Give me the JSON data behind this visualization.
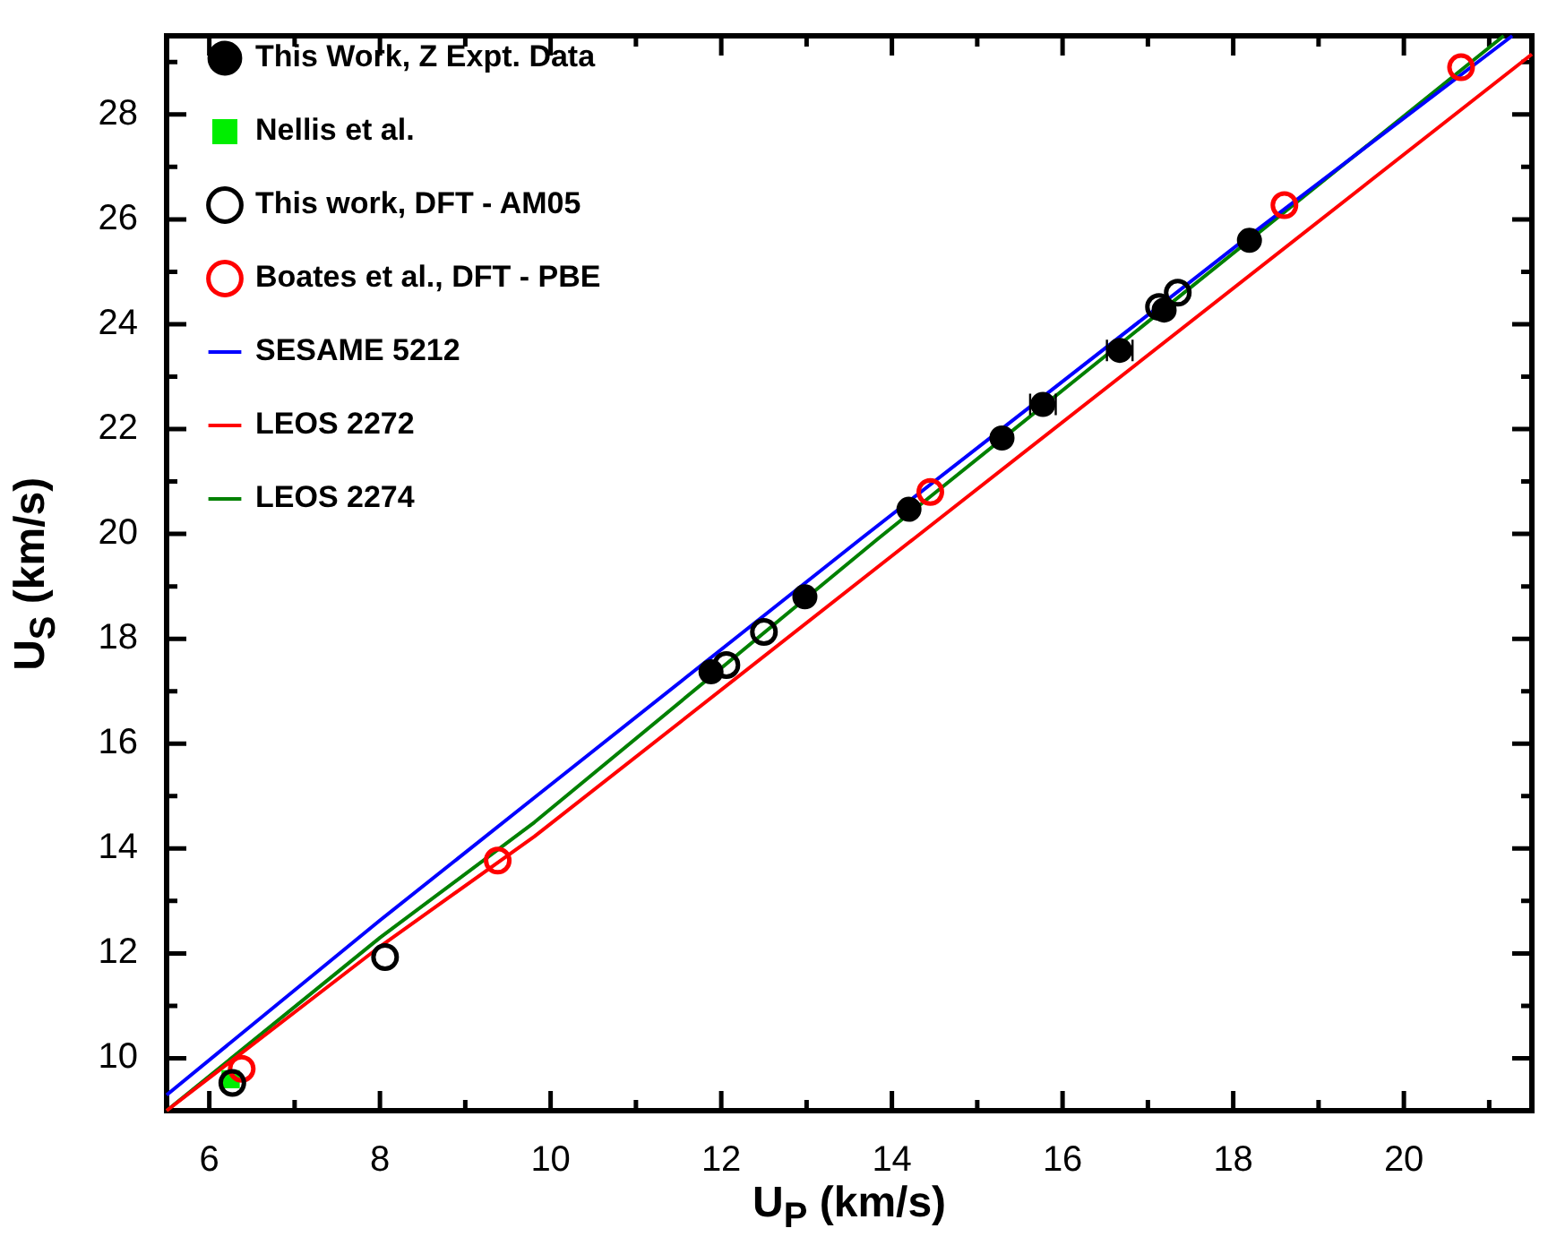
{
  "chart_data": {
    "type": "scatter",
    "xlabel": "U$_{P}$ (km/s)",
    "ylabel": "U$_{S}$ (km/s)",
    "xlim": [
      5.5,
      21.5
    ],
    "ylim": [
      9,
      29.5
    ],
    "xticks": [
      6,
      {
        "value": 7,
        "label": null
      },
      8,
      {
        "value": 9,
        "label": null
      },
      10,
      {
        "value": 11,
        "label": null
      },
      12,
      {
        "value": 13,
        "label": null
      },
      14,
      {
        "value": 15,
        "label": null
      },
      16,
      {
        "value": 17,
        "label": null
      },
      18,
      {
        "value": 19,
        "label": null
      },
      20,
      {
        "value": 21,
        "label": null
      }
    ],
    "yticks": [
      10,
      {
        "value": 11,
        "label": null
      },
      12,
      {
        "value": 13,
        "label": null
      },
      14,
      {
        "value": 15,
        "label": null
      },
      16,
      {
        "value": 17,
        "label": null
      },
      18,
      {
        "value": 19,
        "label": null
      },
      20,
      {
        "value": 21,
        "label": null
      },
      22,
      {
        "value": 23,
        "label": null
      },
      24,
      {
        "value": 25,
        "label": null
      },
      26,
      {
        "value": 27,
        "label": null
      },
      28,
      {
        "value": 29,
        "label": null
      }
    ],
    "legend": "top left",
    "series": [
      {
        "name": "This Work, Z Expt. Data",
        "color": "#000000",
        "marker": "circle",
        "x": [
          11.88,
          12.98,
          14.2,
          15.29,
          15.77,
          16.67,
          17.19,
          18.19
        ],
        "values": [
          17.37,
          18.8,
          20.47,
          21.83,
          22.47,
          23.5,
          24.27,
          25.6
        ],
        "xerrors": [
          null,
          null,
          null,
          null,
          0.15,
          0.15,
          null,
          null
        ]
      },
      {
        "name": "Nellis et al.",
        "color": "#00ee00",
        "marker": "square",
        "x": [
          6.25
        ],
        "values": [
          9.6
        ]
      },
      {
        "name": "This work, DFT - AM05",
        "color": "#000000",
        "marker": "circle",
        "x": [
          6.27,
          8.06,
          12.06,
          12.5,
          17.13,
          17.35
        ],
        "values": [
          9.53,
          11.93,
          17.5,
          18.13,
          24.33,
          24.6
        ]
      },
      {
        "name": "Boates et al., DFT - PBE",
        "color": "#ff0000",
        "marker": "circle",
        "x": [
          6.38,
          9.38,
          14.45,
          18.6,
          20.67
        ],
        "values": [
          9.8,
          13.77,
          20.8,
          26.27,
          28.9
        ]
      },
      {
        "type": "line",
        "name": "SESAME 5212",
        "color": "#0000ff",
        "marker": "none",
        "x": [
          5.5,
          8,
          9.81,
          13.63,
          18.2,
          21.27
        ],
        "values": [
          9.3,
          12.63,
          14.97,
          19.9,
          25.7,
          29.5
        ]
      },
      {
        "type": "line",
        "name": "LEOS 2272",
        "color": "#ff0000",
        "marker": "none",
        "x": [
          5.5,
          8,
          9.81,
          14.25,
          21.5
        ],
        "values": [
          9.0,
          12.13,
          14.23,
          19.9,
          29.15
        ]
      },
      {
        "type": "line",
        "name": "LEOS 2274",
        "color": "#008000",
        "marker": "none",
        "x": [
          5.5,
          8,
          9.81,
          13.83,
          21.17
        ],
        "values": [
          9.0,
          12.3,
          14.5,
          19.9,
          29.5
        ]
      }
    ]
  }
}
